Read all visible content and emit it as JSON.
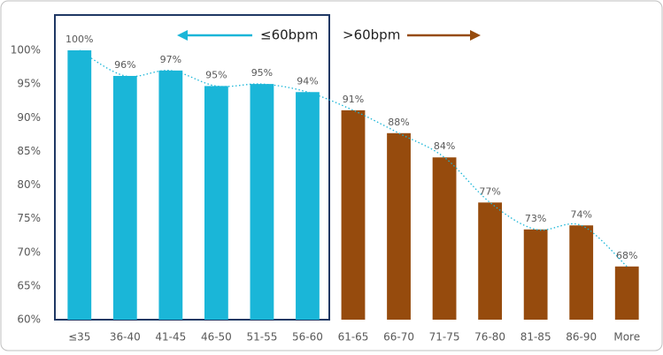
{
  "chart_data": {
    "type": "bar",
    "categories": [
      "≤35",
      "36-40",
      "41-45",
      "46-50",
      "51-55",
      "56-60",
      "61-65",
      "66-70",
      "71-75",
      "76-80",
      "81-85",
      "86-90",
      "More"
    ],
    "values": [
      100,
      96.2,
      97,
      94.7,
      95,
      93.8,
      91.1,
      87.7,
      84.1,
      77.4,
      73.4,
      74,
      67.9
    ],
    "value_labels": [
      "100%",
      "96%",
      "97%",
      "95%",
      "95%",
      "94%",
      "91%",
      "88%",
      "84%",
      "77%",
      "73%",
      "74%",
      "68%"
    ],
    "colors": [
      "#1ab6d8",
      "#1ab6d8",
      "#1ab6d8",
      "#1ab6d8",
      "#1ab6d8",
      "#1ab6d8",
      "#964b0d",
      "#964b0d",
      "#964b0d",
      "#964b0d",
      "#964b0d",
      "#964b0d",
      "#964b0d"
    ],
    "ylim": [
      60,
      100
    ],
    "yticks": [
      {
        "value": 60,
        "label": "60%"
      },
      {
        "value": 65,
        "label": "65%"
      },
      {
        "value": 70,
        "label": "70%"
      },
      {
        "value": 75,
        "label": "75%"
      },
      {
        "value": 80,
        "label": "80%"
      },
      {
        "value": 85,
        "label": "85%"
      },
      {
        "value": 90,
        "label": "90%"
      },
      {
        "value": 95,
        "label": "95%"
      },
      {
        "value": 100,
        "label": "100%"
      }
    ],
    "trendline": true,
    "annotations": [
      "≤60bpm",
      ">60bpm"
    ]
  }
}
